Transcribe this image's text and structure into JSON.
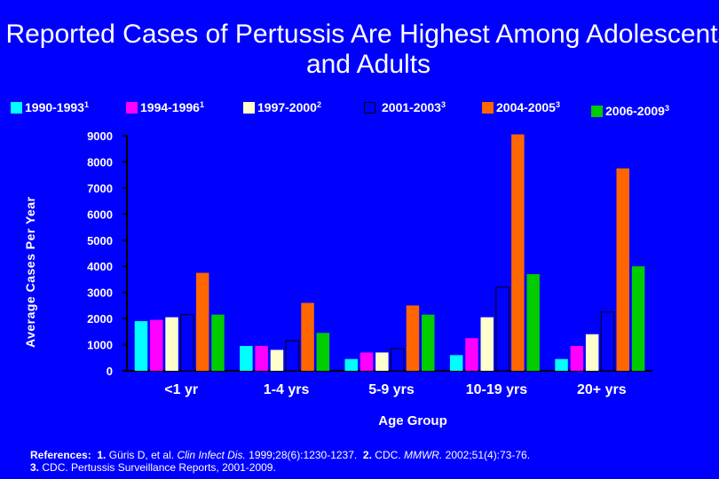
{
  "chart_data": {
    "type": "bar",
    "title": "Reported Cases of Pertussis Are Highest Among Adolescents and Adults",
    "xlabel": "Age Group",
    "ylabel": "Average Cases Per Year",
    "ylim": [
      0,
      9000
    ],
    "yticks": [
      "0",
      "1000",
      "2000",
      "3000",
      "4000",
      "5000",
      "6000",
      "7000",
      "8000",
      "9000"
    ],
    "categories": [
      "<1 yr",
      "1-4 yrs",
      "5-9 yrs",
      "10-19 yrs",
      "20+ yrs"
    ],
    "series": [
      {
        "name": "1990-1993",
        "sup": "1",
        "color": "#00FFFF",
        "values": [
          1900,
          950,
          450,
          600,
          450
        ]
      },
      {
        "name": "1994-1996",
        "sup": "1",
        "color": "#FF00FF",
        "values": [
          1950,
          950,
          700,
          1250,
          950
        ]
      },
      {
        "name": "1997-2000",
        "sup": "2",
        "color": "#FFFFCC",
        "values": [
          2050,
          800,
          700,
          2050,
          1400
        ]
      },
      {
        "name": "2001-2003",
        "sup": "3",
        "color": "#0000FF",
        "values": [
          2150,
          1150,
          850,
          3200,
          2250
        ]
      },
      {
        "name": "2004-2005",
        "sup": "3",
        "color": "#FF6600",
        "values": [
          3750,
          2600,
          2500,
          9050,
          7750
        ]
      },
      {
        "name": "2006-2009",
        "sup": "3",
        "color": "#00CC00",
        "values": [
          2150,
          1450,
          2150,
          3700,
          4000
        ]
      }
    ],
    "legend": "top",
    "grid": false
  },
  "references": {
    "label": "References:",
    "ref1_num": "1.",
    "ref1_a": "Güris D, et al.",
    "ref1_journal": "Clin Infect Dis.",
    "ref1_b": "1999;28(6):1230-1237.",
    "ref2_num": "2.",
    "ref2_a": "CDC.",
    "ref2_journal": "MMWR.",
    "ref2_b": "2002;51(4):73-76.",
    "ref3_num": "3.",
    "ref3_a": "CDC. Pertussis Surveillance Reports, 2001-2009."
  }
}
